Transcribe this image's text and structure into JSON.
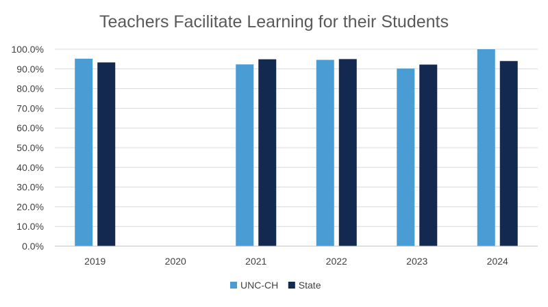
{
  "chart_data": {
    "type": "bar",
    "title": "Teachers Facilitate Learning for their Students",
    "xlabel": "",
    "ylabel": "",
    "categories": [
      "2019",
      "2020",
      "2021",
      "2022",
      "2023",
      "2024"
    ],
    "series": [
      {
        "name": "UNC-CH",
        "color": "#4a9cd5",
        "values": [
          95.2,
          null,
          92.3,
          94.6,
          90.2,
          100.0
        ]
      },
      {
        "name": "State",
        "color": "#14294f",
        "values": [
          93.3,
          null,
          94.9,
          95.0,
          92.2,
          94.0
        ]
      }
    ],
    "ylim": [
      0,
      100
    ],
    "yticks": [
      "0.0%",
      "10.0%",
      "20.0%",
      "30.0%",
      "40.0%",
      "50.0%",
      "60.0%",
      "70.0%",
      "80.0%",
      "90.0%",
      "100.0%"
    ],
    "grid": true,
    "legend_position": "bottom"
  }
}
